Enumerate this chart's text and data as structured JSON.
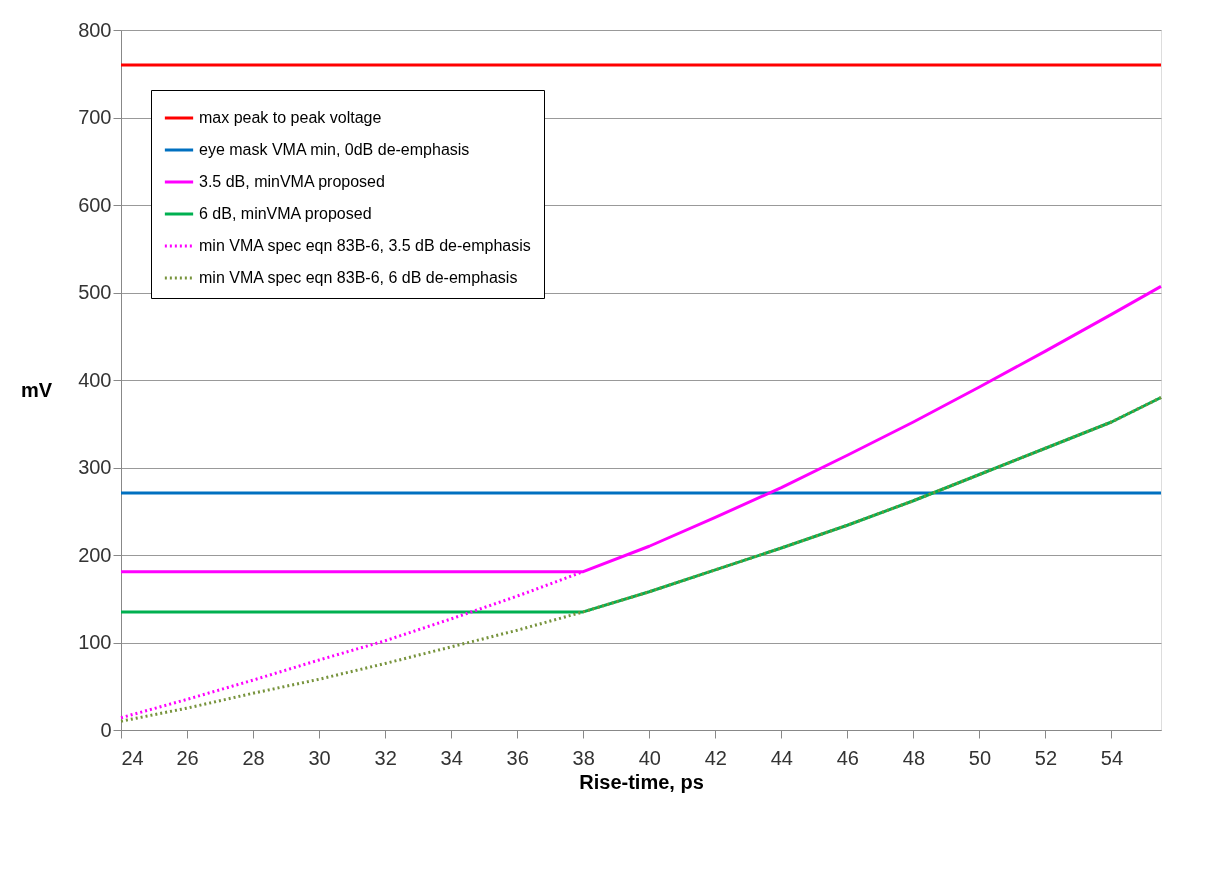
{
  "chart_data": {
    "type": "line",
    "xlabel": "Rise-time, ps",
    "ylabel": "mV",
    "xlim": [
      24,
      55.5
    ],
    "xticks": [
      24,
      26,
      28,
      30,
      32,
      34,
      36,
      38,
      40,
      42,
      44,
      46,
      48,
      50,
      52,
      54
    ],
    "ylim": [
      0,
      800
    ],
    "yticks": [
      0,
      100,
      200,
      300,
      400,
      500,
      600,
      700,
      800
    ],
    "grid": "y",
    "legend": "top left",
    "marker": "none",
    "series": [
      {
        "name": "max peak to peak voltage",
        "color": "#ff0000",
        "line_style": "solid",
        "x": [
          24,
          55.5
        ],
        "values": [
          760,
          760
        ]
      },
      {
        "name": "eye mask VMA min, 0dB de-emphasis",
        "color": "#0070c0",
        "line_style": "solid",
        "x": [
          24,
          55.5
        ],
        "values": [
          271,
          271
        ]
      },
      {
        "name": "3.5 dB, minVMA proposed",
        "color": "#ff00ff",
        "line_style": "solid",
        "x": [
          24,
          38,
          40,
          42,
          44,
          46,
          48,
          50,
          52,
          54,
          55.5
        ],
        "values": [
          181,
          181,
          210,
          243,
          277,
          314,
          352,
          392,
          433,
          475,
          507
        ]
      },
      {
        "name": "6 dB, minVMA proposed",
        "color": "#00b050",
        "line_style": "solid",
        "x": [
          24,
          38,
          40,
          42,
          44,
          46,
          48,
          50,
          52,
          54,
          55.5
        ],
        "values": [
          135,
          135,
          158,
          183,
          208,
          234,
          262,
          292,
          322,
          352,
          380
        ]
      },
      {
        "name": "min VMA spec eqn 83B-6, 3.5 dB de-emphasis",
        "color": "#ff00ff",
        "line_style": "dotted",
        "x": [
          24,
          26,
          28,
          30,
          32,
          34,
          36,
          38
        ],
        "values": [
          14,
          35,
          57,
          80,
          102,
          127,
          153,
          181
        ]
      },
      {
        "name": "min VMA spec eqn 83B-6, 6 dB de-emphasis",
        "color": "#77933c",
        "line_style": "dotted",
        "x": [
          24,
          26,
          28,
          30,
          32,
          34,
          36,
          38,
          40,
          42,
          44,
          46,
          48,
          50,
          52,
          54,
          55.5
        ],
        "values": [
          10,
          25,
          42,
          58,
          76,
          95,
          114,
          135,
          158,
          183,
          208,
          234,
          262,
          292,
          322,
          352,
          380
        ]
      }
    ]
  }
}
